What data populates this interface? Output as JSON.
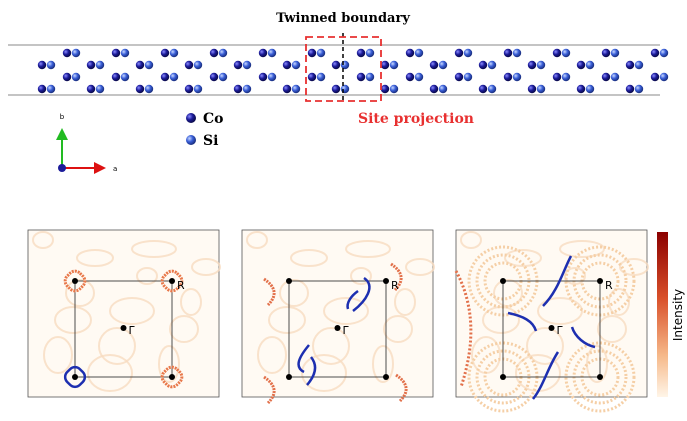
{
  "top": {
    "title": "Twinned boundary",
    "legend": [
      "Co",
      "Si"
    ],
    "annotation": "Site projection",
    "axis_b": "b",
    "axis_a": "a"
  },
  "panels": [
    {
      "corner": "R",
      "center": "Γ̄"
    },
    {
      "corner": "R",
      "center": "Γ̄"
    },
    {
      "corner": "R",
      "center": "Γ̄"
    }
  ],
  "colorbar": {
    "label": "Intensity"
  }
}
